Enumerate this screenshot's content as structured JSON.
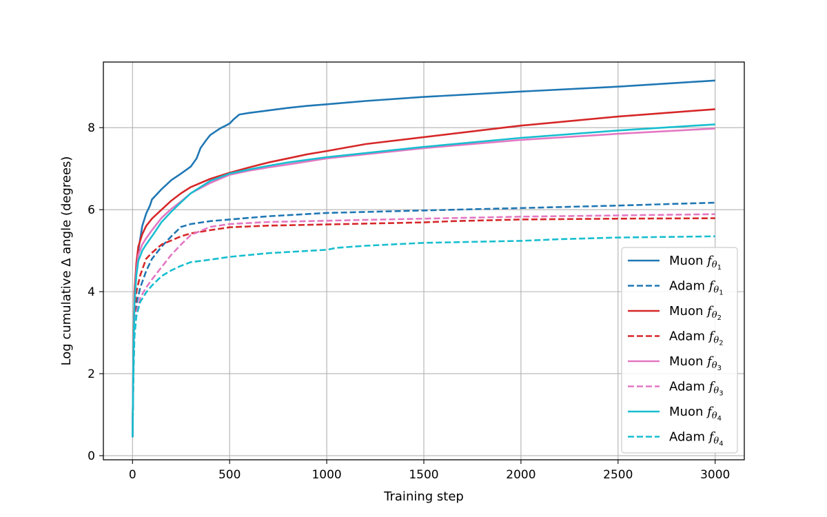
{
  "chart_data": {
    "type": "line",
    "xlabel": "Training step",
    "ylabel": "Log cumulative Δ angle (degrees)",
    "xlim": [
      -150,
      3150
    ],
    "ylim": [
      -0.1,
      9.6
    ],
    "xticks": [
      0,
      500,
      1000,
      1500,
      2000,
      2500,
      3000
    ],
    "xtick_labels": [
      "0",
      "500",
      "1000",
      "1500",
      "2000",
      "2500",
      "3000"
    ],
    "yticks": [
      0,
      2,
      4,
      6,
      8
    ],
    "ytick_labels": [
      "0",
      "2",
      "4",
      "6",
      "8"
    ],
    "grid": true,
    "legend_position": "lower-right",
    "series": [
      {
        "name": "Muon f_{θ_1}",
        "legend_text": "Muon",
        "legend_sub": "1",
        "color": "#1f77b4",
        "dash": "solid",
        "points": [
          [
            0,
            0.45
          ],
          [
            5,
            2.5
          ],
          [
            10,
            3.8
          ],
          [
            20,
            4.6
          ],
          [
            30,
            5.0
          ],
          [
            50,
            5.6
          ],
          [
            70,
            5.9
          ],
          [
            90,
            6.1
          ],
          [
            100,
            6.25
          ],
          [
            150,
            6.5
          ],
          [
            200,
            6.72
          ],
          [
            250,
            6.88
          ],
          [
            300,
            7.05
          ],
          [
            330,
            7.25
          ],
          [
            350,
            7.5
          ],
          [
            380,
            7.7
          ],
          [
            400,
            7.82
          ],
          [
            450,
            7.98
          ],
          [
            480,
            8.05
          ],
          [
            500,
            8.1
          ],
          [
            520,
            8.2
          ],
          [
            550,
            8.32
          ],
          [
            600,
            8.36
          ],
          [
            700,
            8.42
          ],
          [
            800,
            8.48
          ],
          [
            900,
            8.53
          ],
          [
            1000,
            8.57
          ],
          [
            1200,
            8.65
          ],
          [
            1500,
            8.75
          ],
          [
            2000,
            8.88
          ],
          [
            2500,
            9.0
          ],
          [
            3000,
            9.15
          ]
        ]
      },
      {
        "name": "Adam f_{θ_1}",
        "legend_text": "Adam",
        "legend_sub": "1",
        "color": "#1f77b4",
        "dash": "dashed",
        "points": [
          [
            0,
            0.45
          ],
          [
            5,
            2.2
          ],
          [
            10,
            3.2
          ],
          [
            20,
            3.7
          ],
          [
            40,
            4.1
          ],
          [
            70,
            4.5
          ],
          [
            100,
            4.8
          ],
          [
            150,
            5.1
          ],
          [
            200,
            5.35
          ],
          [
            250,
            5.58
          ],
          [
            300,
            5.65
          ],
          [
            400,
            5.72
          ],
          [
            500,
            5.76
          ],
          [
            700,
            5.84
          ],
          [
            1000,
            5.92
          ],
          [
            1500,
            5.98
          ],
          [
            2000,
            6.04
          ],
          [
            2500,
            6.1
          ],
          [
            3000,
            6.17
          ]
        ]
      },
      {
        "name": "Muon f_{θ_2}",
        "legend_text": "Muon",
        "legend_sub": "2",
        "color": "#d62728",
        "dash": "solid",
        "points": [
          [
            0,
            0.45
          ],
          [
            5,
            2.8
          ],
          [
            10,
            4.0
          ],
          [
            20,
            4.7
          ],
          [
            30,
            5.1
          ],
          [
            50,
            5.4
          ],
          [
            70,
            5.6
          ],
          [
            100,
            5.78
          ],
          [
            150,
            6.0
          ],
          [
            200,
            6.22
          ],
          [
            250,
            6.4
          ],
          [
            300,
            6.55
          ],
          [
            400,
            6.75
          ],
          [
            500,
            6.9
          ],
          [
            600,
            7.03
          ],
          [
            700,
            7.15
          ],
          [
            800,
            7.25
          ],
          [
            900,
            7.35
          ],
          [
            1000,
            7.43
          ],
          [
            1200,
            7.6
          ],
          [
            1500,
            7.77
          ],
          [
            2000,
            8.05
          ],
          [
            2500,
            8.27
          ],
          [
            3000,
            8.45
          ]
        ]
      },
      {
        "name": "Adam f_{θ_2}",
        "legend_text": "Adam",
        "legend_sub": "2",
        "color": "#d62728",
        "dash": "dashed",
        "points": [
          [
            0,
            0.45
          ],
          [
            5,
            2.3
          ],
          [
            10,
            3.4
          ],
          [
            20,
            4.0
          ],
          [
            40,
            4.4
          ],
          [
            70,
            4.8
          ],
          [
            100,
            4.95
          ],
          [
            150,
            5.15
          ],
          [
            200,
            5.25
          ],
          [
            250,
            5.35
          ],
          [
            300,
            5.42
          ],
          [
            400,
            5.5
          ],
          [
            500,
            5.57
          ],
          [
            700,
            5.61
          ],
          [
            1000,
            5.64
          ],
          [
            1500,
            5.69
          ],
          [
            1650,
            5.72
          ],
          [
            2000,
            5.76
          ],
          [
            2500,
            5.78
          ],
          [
            3000,
            5.79
          ]
        ]
      },
      {
        "name": "Muon f_{θ_3}",
        "legend_text": "Muon",
        "legend_sub": "3",
        "color": "#e377c2",
        "dash": "solid",
        "points": [
          [
            0,
            0.45
          ],
          [
            5,
            2.6
          ],
          [
            10,
            3.8
          ],
          [
            20,
            4.5
          ],
          [
            30,
            4.9
          ],
          [
            50,
            5.15
          ],
          [
            70,
            5.3
          ],
          [
            100,
            5.5
          ],
          [
            150,
            5.8
          ],
          [
            200,
            6.02
          ],
          [
            250,
            6.2
          ],
          [
            300,
            6.4
          ],
          [
            400,
            6.65
          ],
          [
            500,
            6.85
          ],
          [
            600,
            6.95
          ],
          [
            700,
            7.03
          ],
          [
            800,
            7.1
          ],
          [
            1000,
            7.25
          ],
          [
            1500,
            7.5
          ],
          [
            2000,
            7.7
          ],
          [
            2500,
            7.85
          ],
          [
            3000,
            7.98
          ]
        ]
      },
      {
        "name": "Adam f_{θ_3}",
        "legend_text": "Adam",
        "legend_sub": "3",
        "color": "#e377c2",
        "dash": "dashed",
        "points": [
          [
            0,
            0.45
          ],
          [
            5,
            2.0
          ],
          [
            10,
            3.0
          ],
          [
            20,
            3.5
          ],
          [
            40,
            3.85
          ],
          [
            70,
            4.1
          ],
          [
            100,
            4.3
          ],
          [
            150,
            4.6
          ],
          [
            200,
            4.9
          ],
          [
            250,
            5.15
          ],
          [
            300,
            5.38
          ],
          [
            400,
            5.58
          ],
          [
            500,
            5.65
          ],
          [
            700,
            5.7
          ],
          [
            1000,
            5.73
          ],
          [
            1500,
            5.78
          ],
          [
            2000,
            5.83
          ],
          [
            2500,
            5.86
          ],
          [
            3000,
            5.89
          ]
        ]
      },
      {
        "name": "Muon f_{θ_4}",
        "legend_text": "Muon",
        "legend_sub": "4",
        "color": "#17becf",
        "dash": "solid",
        "points": [
          [
            0,
            0.45
          ],
          [
            5,
            2.5
          ],
          [
            10,
            3.7
          ],
          [
            20,
            4.4
          ],
          [
            30,
            4.75
          ],
          [
            50,
            5.0
          ],
          [
            70,
            5.15
          ],
          [
            100,
            5.35
          ],
          [
            150,
            5.7
          ],
          [
            200,
            5.95
          ],
          [
            250,
            6.18
          ],
          [
            300,
            6.4
          ],
          [
            400,
            6.7
          ],
          [
            500,
            6.88
          ],
          [
            600,
            6.98
          ],
          [
            700,
            7.07
          ],
          [
            800,
            7.15
          ],
          [
            1000,
            7.28
          ],
          [
            1500,
            7.53
          ],
          [
            2000,
            7.75
          ],
          [
            2500,
            7.93
          ],
          [
            3000,
            8.08
          ]
        ]
      },
      {
        "name": "Adam f_{θ_4}",
        "legend_text": "Adam",
        "legend_sub": "4",
        "color": "#17becf",
        "dash": "dashed",
        "points": [
          [
            0,
            0.45
          ],
          [
            5,
            2.0
          ],
          [
            10,
            2.9
          ],
          [
            20,
            3.4
          ],
          [
            40,
            3.75
          ],
          [
            70,
            3.98
          ],
          [
            100,
            4.15
          ],
          [
            150,
            4.38
          ],
          [
            200,
            4.52
          ],
          [
            250,
            4.63
          ],
          [
            300,
            4.72
          ],
          [
            400,
            4.78
          ],
          [
            500,
            4.85
          ],
          [
            700,
            4.94
          ],
          [
            1000,
            5.02
          ],
          [
            1050,
            5.07
          ],
          [
            1200,
            5.12
          ],
          [
            1500,
            5.19
          ],
          [
            2000,
            5.24
          ],
          [
            2200,
            5.28
          ],
          [
            2500,
            5.32
          ],
          [
            3000,
            5.35
          ]
        ]
      }
    ]
  }
}
